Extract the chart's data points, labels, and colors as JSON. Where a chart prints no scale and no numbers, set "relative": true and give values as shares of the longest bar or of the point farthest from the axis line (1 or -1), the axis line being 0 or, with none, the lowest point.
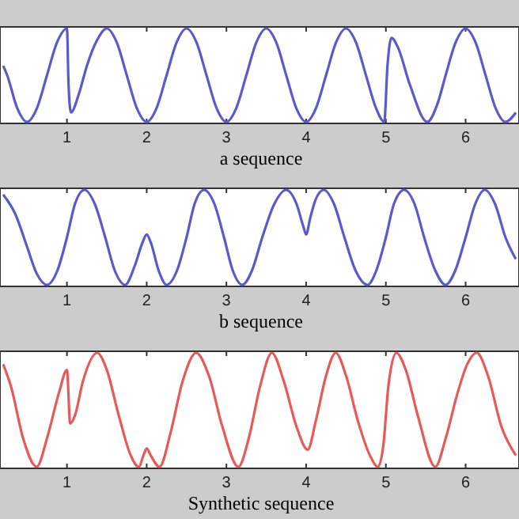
{
  "chart_data": [
    {
      "type": "line",
      "xlabel": "a sequence",
      "relative": true,
      "color": "#5a5ad0",
      "xlim": [
        0.2,
        6.63
      ],
      "xticks": [
        1,
        2,
        3,
        4,
        5,
        6
      ],
      "x": [
        0.2,
        0.25,
        0.375,
        0.5,
        0.625,
        0.75,
        0.875,
        1.0,
        1.02,
        1.05,
        1.15,
        1.25,
        1.375,
        1.5,
        1.625,
        1.75,
        1.875,
        2,
        2.125,
        2.25,
        2.375,
        2.5,
        2.625,
        2.75,
        2.875,
        3,
        3.125,
        3.25,
        3.375,
        3.5,
        3.625,
        3.75,
        3.875,
        4,
        4.125,
        4.25,
        4.375,
        4.5,
        4.625,
        4.75,
        4.875,
        4.98,
        5.02,
        5.07,
        5.15,
        5.3,
        5.52,
        5.65,
        5.75,
        5.875,
        6,
        6.125,
        6.25,
        6.375,
        6.5,
        6.63
      ],
      "values": [
        0.6,
        0.5,
        0.15,
        0,
        0.15,
        0.5,
        0.85,
        1,
        0.4,
        0.1,
        0.3,
        0.6,
        0.87,
        1,
        0.85,
        0.5,
        0.15,
        0,
        0.15,
        0.5,
        0.85,
        1,
        0.85,
        0.5,
        0.15,
        0,
        0.15,
        0.5,
        0.85,
        1,
        0.85,
        0.5,
        0.15,
        0,
        0.15,
        0.5,
        0.85,
        1,
        0.85,
        0.5,
        0.15,
        0,
        0.6,
        0.9,
        0.8,
        0.4,
        0,
        0.2,
        0.5,
        0.85,
        1,
        0.85,
        0.5,
        0.15,
        0,
        0.1
      ]
    },
    {
      "type": "line",
      "xlabel": "b sequence",
      "relative": true,
      "color": "#5a5ad0",
      "xlim": [
        0.2,
        6.63
      ],
      "xticks": [
        1,
        2,
        3,
        4,
        5,
        6
      ],
      "x": [
        0.2,
        0.35,
        0.5,
        0.62,
        0.75,
        0.88,
        1.0,
        1.1,
        1.22,
        1.35,
        1.48,
        1.6,
        1.73,
        1.85,
        1.95,
        2.0,
        2.05,
        2.15,
        2.25,
        2.38,
        2.5,
        2.6,
        2.72,
        2.85,
        2.97,
        3.08,
        3.2,
        3.32,
        3.45,
        3.6,
        3.75,
        3.88,
        3.97,
        4.0,
        4.05,
        4.12,
        4.22,
        4.35,
        4.48,
        4.62,
        4.77,
        4.88,
        5.0,
        5.1,
        5.23,
        5.36,
        5.48,
        5.62,
        5.75,
        5.87,
        6.0,
        6.12,
        6.24,
        6.37,
        6.5,
        6.63
      ],
      "values": [
        0.95,
        0.75,
        0.4,
        0.12,
        0,
        0.15,
        0.5,
        0.85,
        1,
        0.85,
        0.5,
        0.15,
        0,
        0.2,
        0.45,
        0.53,
        0.45,
        0.15,
        0,
        0.15,
        0.5,
        0.85,
        1,
        0.85,
        0.5,
        0.15,
        0,
        0.15,
        0.5,
        0.85,
        1,
        0.85,
        0.6,
        0.53,
        0.7,
        0.9,
        1,
        0.85,
        0.5,
        0.15,
        0,
        0.15,
        0.5,
        0.85,
        1,
        0.85,
        0.5,
        0.15,
        0,
        0.15,
        0.5,
        0.85,
        1,
        0.85,
        0.5,
        0.27
      ]
    },
    {
      "type": "line",
      "xlabel": "Synthetic sequence",
      "relative": true,
      "color": "#e85a5a",
      "xlim": [
        0.2,
        6.63
      ],
      "xticks": [
        1,
        2,
        3,
        4,
        5,
        6
      ],
      "x": [
        0.2,
        0.3,
        0.45,
        0.62,
        0.75,
        0.9,
        1.0,
        1.04,
        1.1,
        1.2,
        1.38,
        1.5,
        1.65,
        1.8,
        1.9,
        1.97,
        2.0,
        2.05,
        2.16,
        2.3,
        2.45,
        2.62,
        2.78,
        2.95,
        3.15,
        3.28,
        3.42,
        3.57,
        3.72,
        3.88,
        4.02,
        4.12,
        4.25,
        4.37,
        4.5,
        4.65,
        4.8,
        4.9,
        4.97,
        5.03,
        5.13,
        5.25,
        5.4,
        5.62,
        5.75,
        5.9,
        6.02,
        6.14,
        6.28,
        6.45,
        6.63
      ],
      "values": [
        0.9,
        0.7,
        0.25,
        0,
        0.25,
        0.65,
        0.85,
        0.38,
        0.45,
        0.75,
        1,
        0.85,
        0.45,
        0.1,
        0,
        0.12,
        0.16,
        0.1,
        0,
        0.3,
        0.75,
        1,
        0.8,
        0.35,
        0,
        0.25,
        0.7,
        1,
        0.75,
        0.35,
        0.15,
        0.4,
        0.8,
        1,
        0.8,
        0.4,
        0.1,
        0,
        0.2,
        0.7,
        1,
        0.85,
        0.45,
        0,
        0.25,
        0.65,
        0.9,
        1,
        0.8,
        0.35,
        0.1
      ]
    }
  ]
}
